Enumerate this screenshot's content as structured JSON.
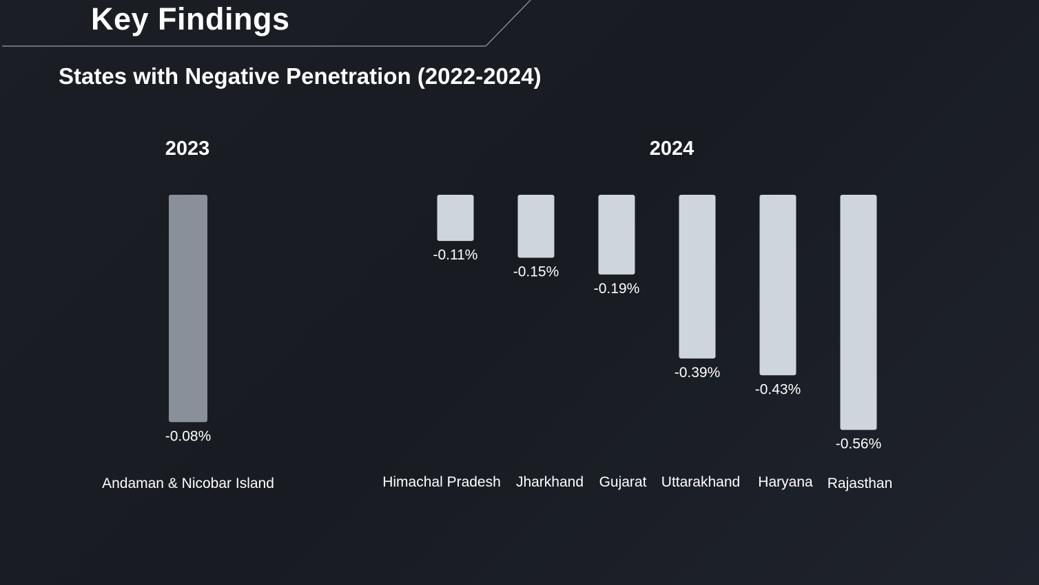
{
  "page": {
    "title": "Key Findings",
    "subtitle": "States with Negative Penetration (2022-2024)"
  },
  "chart_data": [
    {
      "type": "bar",
      "title": "2023",
      "categories": [
        "Andaman & Nicobar Island"
      ],
      "values": [
        -0.08
      ],
      "value_labels": [
        "-0.08%"
      ],
      "bar_color": "#8a9099"
    },
    {
      "type": "bar",
      "title": "2024",
      "categories": [
        "Himachal Pradesh",
        "Jharkhand",
        "Gujarat",
        "Uttarakhand",
        "Haryana",
        "Rajasthan"
      ],
      "values": [
        -0.11,
        -0.15,
        -0.19,
        -0.39,
        -0.43,
        -0.56
      ],
      "value_labels": [
        "-0.11%",
        "-0.15%",
        "-0.19%",
        "-0.39%",
        "-0.43%",
        "-0.56%"
      ],
      "bar_color": "#cfd5dc"
    }
  ],
  "colors": {
    "text": "#ffffff",
    "header_line": "#9aa0a8"
  }
}
